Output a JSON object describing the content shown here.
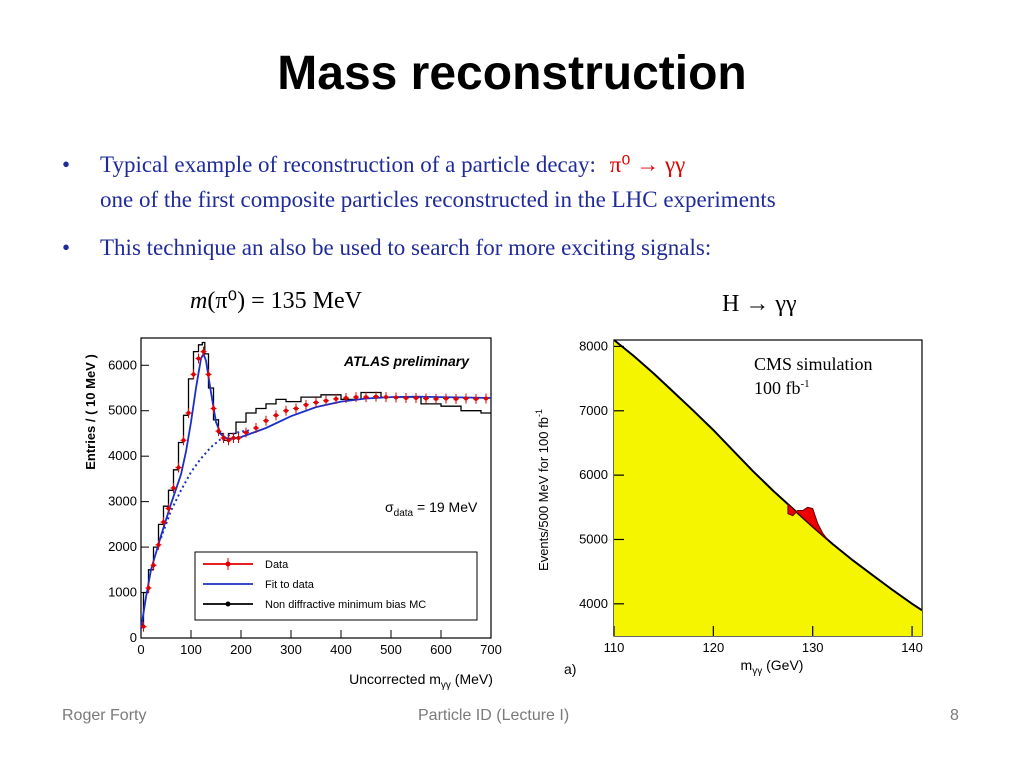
{
  "slide": {
    "title": "Mass reconstruction",
    "bullets": [
      {
        "marker": "•",
        "line1": "Typical example of reconstruction of a particle decay:",
        "decay": "π⁰ → γγ",
        "line2": "one of the first composite particles reconstructed in the LHC experiments"
      },
      {
        "marker": "•",
        "line1": "This technique an also be used to search for more exciting signals:"
      }
    ],
    "left_caption": {
      "m": "m",
      "rest": "(π⁰) = 135 MeV"
    },
    "right_caption": "H → γγ"
  },
  "footer": {
    "author": "Roger Forty",
    "center": "Particle ID  (Lecture I)",
    "page": "8"
  },
  "chart_data": [
    {
      "type": "line",
      "annotation": "ATLAS preliminary",
      "sigma": {
        "symbol": "σ",
        "sub": "data",
        "value": "= 19 MeV"
      },
      "xlabel": "Uncorrected m",
      "xlabel_sub": "γγ",
      "xlabel_unit": " (MeV)",
      "ylabel": "Entries / ( 10 MeV )",
      "xlim": [
        0,
        700
      ],
      "ylim": [
        0,
        6600
      ],
      "xticks": [
        0,
        100,
        200,
        300,
        400,
        500,
        600,
        700
      ],
      "yticks": [
        0,
        1000,
        2000,
        3000,
        4000,
        5000,
        6000
      ],
      "legend": {
        "position": "bottom-right",
        "entries": [
          {
            "label": "Data",
            "color": "#e00000",
            "style": "data"
          },
          {
            "label": "Fit to data",
            "color": "#1a2fc8",
            "style": "line"
          },
          {
            "label": "Non diffractive minimum bias MC",
            "color": "#000000",
            "style": "mc"
          }
        ]
      },
      "series": [
        {
          "name": "Data",
          "color": "#e00000",
          "x": [
            5,
            15,
            25,
            35,
            45,
            55,
            65,
            75,
            85,
            95,
            105,
            115,
            125,
            135,
            145,
            155,
            165,
            175,
            185,
            195,
            210,
            230,
            250,
            270,
            290,
            310,
            330,
            350,
            370,
            390,
            410,
            430,
            450,
            470,
            490,
            510,
            530,
            550,
            570,
            590,
            610,
            630,
            650,
            670,
            690
          ],
          "y": [
            250,
            1100,
            1600,
            2050,
            2550,
            2850,
            3300,
            3750,
            4350,
            4950,
            5800,
            6150,
            6300,
            5800,
            5050,
            4550,
            4400,
            4350,
            4400,
            4400,
            4520,
            4620,
            4780,
            4900,
            5000,
            5050,
            5130,
            5180,
            5220,
            5260,
            5280,
            5300,
            5300,
            5310,
            5300,
            5290,
            5280,
            5280,
            5270,
            5260,
            5270,
            5260,
            5270,
            5260,
            5270
          ]
        },
        {
          "name": "Fit to data",
          "color": "#1a2fc8",
          "x": [
            0,
            10,
            20,
            40,
            60,
            80,
            90,
            100,
            110,
            120,
            125,
            130,
            140,
            150,
            160,
            170,
            180,
            200,
            250,
            300,
            350,
            400,
            450,
            500,
            550,
            600,
            650,
            700
          ],
          "y": [
            200,
            900,
            1500,
            2250,
            2950,
            3600,
            4100,
            4750,
            5500,
            6150,
            6250,
            6100,
            5400,
            4750,
            4480,
            4400,
            4380,
            4420,
            4620,
            4880,
            5080,
            5200,
            5270,
            5300,
            5310,
            5300,
            5290,
            5280
          ]
        },
        {
          "name": "Background (dotted)",
          "color": "#1a2fc8",
          "x": [
            40,
            60,
            80,
            100,
            120,
            140,
            160,
            180,
            200,
            220
          ],
          "y": [
            2200,
            2800,
            3250,
            3650,
            3950,
            4200,
            4380,
            4480,
            4540,
            4570
          ]
        },
        {
          "name": "Non diffractive minimum bias MC",
          "color": "#000000",
          "x": [
            0,
            10,
            20,
            30,
            40,
            50,
            60,
            70,
            80,
            90,
            100,
            110,
            120,
            125,
            130,
            140,
            150,
            160,
            170,
            180,
            200,
            220,
            240,
            260,
            280,
            300,
            340,
            380,
            420,
            460,
            500,
            540,
            580,
            620,
            660,
            700
          ],
          "y": [
            300,
            1000,
            1500,
            2000,
            2500,
            2900,
            3250,
            3700,
            4300,
            4900,
            5700,
            6300,
            6450,
            6500,
            6250,
            5500,
            4800,
            4500,
            4350,
            4500,
            4750,
            4950,
            5050,
            5150,
            5250,
            5200,
            5300,
            5350,
            5250,
            5400,
            5300,
            5300,
            5150,
            5100,
            5000,
            4950
          ]
        }
      ]
    },
    {
      "type": "area",
      "annotation_line1": "CMS simulation",
      "annotation_line2": "100 fb",
      "annotation_sup": "-1",
      "xlabel": "m",
      "xlabel_sub": "γγ",
      "xlabel_unit": " (GeV)",
      "ylabel": "Events/500 MeV for 100 fb",
      "ylabel_sup": "-1",
      "panel_label": "a)",
      "xlim": [
        110,
        141
      ],
      "ylim": [
        3500,
        8100
      ],
      "xticks": [
        110,
        120,
        130,
        140
      ],
      "yticks": [
        4000,
        5000,
        6000,
        7000,
        8000
      ],
      "colors": {
        "background": "#f5f500",
        "signal": "#ee0000"
      },
      "series": [
        {
          "name": "Background",
          "color": "#f5f500",
          "x": [
            110,
            112,
            114,
            116,
            118,
            120,
            122,
            124,
            126,
            128,
            130,
            132,
            134,
            136,
            138,
            140,
            141
          ],
          "y": [
            8100,
            7850,
            7580,
            7290,
            7000,
            6700,
            6380,
            6060,
            5760,
            5480,
            5200,
            4930,
            4680,
            4450,
            4220,
            4000,
            3900
          ]
        },
        {
          "name": "Signal",
          "color": "#ee0000",
          "x": [
            127.5,
            128.0,
            128.5,
            129.0,
            129.5,
            130.0,
            130.5,
            131.0,
            131.5
          ],
          "y": [
            5400,
            5370,
            5450,
            5450,
            5500,
            5480,
            5250,
            5100,
            5000
          ]
        }
      ]
    }
  ]
}
